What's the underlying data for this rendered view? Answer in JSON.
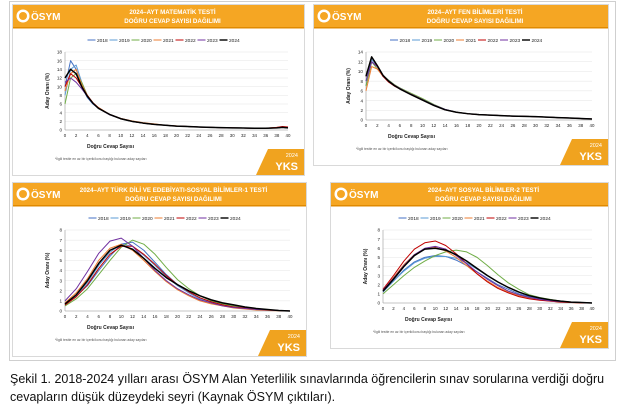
{
  "logo_text": "ÖSYM",
  "corner_badge": {
    "year": "2024",
    "label": "YKS"
  },
  "footnote": "*İlgili testte en az bir içerik/konu başlığı bulunan aday sayıları",
  "caption": "Şekil 1. 2018-2024 yılları arası ÖSYM Alan Yeterlilik sınavlarında öğrencilerin sınav sorularına verdiği doğru cevapların düşük düzeydeki seyri (Kaynak ÖSYM çıktıları).",
  "colors": {
    "banner": "#f5a623",
    "banner_dark": "#f0a31f",
    "series": {
      "2018": "#4472c4",
      "2019": "#5b9bd5",
      "2020": "#70ad47",
      "2021": "#ed7d31",
      "2022": "#c00000",
      "2023": "#7030a0",
      "2024": "#000000"
    }
  },
  "chart_data": [
    {
      "type": "line",
      "title": "2024–AYT MATEMATİK TESTİ",
      "subtitle": "DOĞRU CEVAP SAYISI DAĞILIMI",
      "xlabel": "Doğru Cevap Sayısı",
      "ylabel": "Aday Oranı (%)",
      "xlim": [
        0,
        40
      ],
      "ylim": [
        0,
        18
      ],
      "xticks": [
        0,
        2,
        4,
        6,
        8,
        10,
        12,
        14,
        16,
        18,
        20,
        22,
        24,
        26,
        28,
        30,
        32,
        34,
        36,
        38,
        40
      ],
      "yticks": [
        0,
        2,
        4,
        6,
        8,
        10,
        12,
        14,
        16,
        18
      ],
      "legend": "top",
      "x": [
        0,
        1,
        2,
        3,
        4,
        5,
        6,
        8,
        10,
        12,
        14,
        16,
        18,
        20,
        22,
        24,
        26,
        28,
        30,
        32,
        34,
        36,
        38,
        39,
        40
      ],
      "series": [
        {
          "name": "2018",
          "values": [
            10,
            16,
            14,
            10,
            7.5,
            6,
            5,
            3.6,
            2.7,
            2.0,
            1.6,
            1.3,
            1.1,
            0.9,
            0.8,
            0.7,
            0.6,
            0.55,
            0.5,
            0.45,
            0.4,
            0.4,
            0.5,
            0.6,
            0.5
          ]
        },
        {
          "name": "2019",
          "values": [
            8,
            14,
            15,
            11,
            8,
            6.2,
            5,
            3.6,
            2.6,
            2.0,
            1.6,
            1.3,
            1.1,
            0.9,
            0.8,
            0.7,
            0.6,
            0.55,
            0.5,
            0.45,
            0.4,
            0.4,
            0.5,
            0.6,
            0.5
          ]
        },
        {
          "name": "2020",
          "values": [
            6,
            12,
            13,
            11,
            8,
            6.2,
            5,
            3.5,
            2.6,
            2.0,
            1.6,
            1.3,
            1.1,
            0.9,
            0.8,
            0.7,
            0.6,
            0.55,
            0.5,
            0.45,
            0.4,
            0.4,
            0.5,
            0.6,
            0.5
          ]
        },
        {
          "name": "2021",
          "values": [
            9,
            13,
            14,
            10.5,
            8,
            6.3,
            5.2,
            3.6,
            2.7,
            2.1,
            1.7,
            1.4,
            1.1,
            0.95,
            0.8,
            0.7,
            0.6,
            0.55,
            0.5,
            0.45,
            0.4,
            0.4,
            0.6,
            0.7,
            0.6
          ]
        },
        {
          "name": "2022",
          "values": [
            10,
            13,
            12,
            10,
            8,
            6.3,
            5.1,
            3.6,
            2.6,
            2.0,
            1.6,
            1.3,
            1.1,
            0.9,
            0.8,
            0.7,
            0.6,
            0.55,
            0.5,
            0.45,
            0.4,
            0.4,
            0.6,
            0.8,
            0.7
          ]
        },
        {
          "name": "2023",
          "values": [
            11,
            12,
            11,
            9.5,
            7.8,
            6.2,
            5,
            3.5,
            2.6,
            2.0,
            1.6,
            1.3,
            1.1,
            0.9,
            0.8,
            0.7,
            0.6,
            0.55,
            0.5,
            0.45,
            0.4,
            0.4,
            0.5,
            0.6,
            0.5
          ]
        },
        {
          "name": "2024",
          "values": [
            12,
            14,
            13,
            10,
            7.8,
            6.2,
            5,
            3.6,
            2.6,
            2.0,
            1.6,
            1.3,
            1.1,
            0.9,
            0.8,
            0.7,
            0.6,
            0.55,
            0.5,
            0.45,
            0.4,
            0.4,
            0.5,
            0.6,
            0.5
          ]
        }
      ]
    },
    {
      "type": "line",
      "title": "2024–AYT FEN BİLİMLERİ TESTİ",
      "subtitle": "DOĞRU CEVAP SAYISI DAĞILIMI",
      "xlabel": "Doğru Cevap Sayısı",
      "ylabel": "Aday Oranı (%)",
      "xlim": [
        0,
        40
      ],
      "ylim": [
        0,
        14
      ],
      "xticks": [
        0,
        2,
        4,
        6,
        8,
        10,
        12,
        14,
        16,
        18,
        20,
        22,
        24,
        26,
        28,
        30,
        32,
        34,
        36,
        38,
        40
      ],
      "yticks": [
        0,
        2,
        4,
        6,
        8,
        10,
        12,
        14
      ],
      "legend": "top",
      "x": [
        0,
        1,
        2,
        3,
        4,
        5,
        6,
        8,
        10,
        12,
        14,
        16,
        18,
        20,
        22,
        24,
        26,
        28,
        30,
        32,
        34,
        36,
        38,
        40
      ],
      "series": [
        {
          "name": "2018",
          "values": [
            7,
            12,
            11,
            9,
            8,
            7.2,
            6.6,
            5.4,
            4.3,
            3.1,
            2.2,
            1.6,
            1.3,
            1.1,
            1.0,
            0.9,
            0.8,
            0.75,
            0.7,
            0.6,
            0.5,
            0.4,
            0.3,
            0.2
          ]
        },
        {
          "name": "2019",
          "values": [
            8,
            12.5,
            11,
            9,
            8,
            7.1,
            6.5,
            5.3,
            4.2,
            3.0,
            2.1,
            1.6,
            1.3,
            1.1,
            1.0,
            0.9,
            0.8,
            0.75,
            0.7,
            0.6,
            0.5,
            0.4,
            0.3,
            0.2
          ]
        },
        {
          "name": "2020",
          "values": [
            7,
            12,
            10.5,
            9.2,
            8.2,
            7.3,
            6.6,
            5.5,
            4.4,
            3.2,
            2.2,
            1.6,
            1.3,
            1.1,
            1.0,
            0.9,
            0.8,
            0.75,
            0.7,
            0.6,
            0.5,
            0.4,
            0.3,
            0.2
          ]
        },
        {
          "name": "2021",
          "values": [
            6,
            11,
            10.5,
            9,
            8,
            7.2,
            6.5,
            5.3,
            4.2,
            3.0,
            2.1,
            1.6,
            1.3,
            1.1,
            1.0,
            0.9,
            0.8,
            0.75,
            0.7,
            0.6,
            0.5,
            0.4,
            0.3,
            0.2
          ]
        },
        {
          "name": "2022",
          "values": [
            9,
            13,
            11,
            9,
            7.8,
            7,
            6.4,
            5.2,
            4.1,
            3.0,
            2.1,
            1.6,
            1.3,
            1.1,
            1.0,
            0.9,
            0.8,
            0.75,
            0.7,
            0.6,
            0.5,
            0.4,
            0.3,
            0.2
          ]
        },
        {
          "name": "2023",
          "values": [
            8,
            12,
            11,
            9.2,
            8.1,
            7.2,
            6.5,
            5.3,
            4.2,
            3.1,
            2.2,
            1.6,
            1.3,
            1.1,
            1.0,
            0.9,
            0.8,
            0.75,
            0.7,
            0.6,
            0.5,
            0.4,
            0.3,
            0.2
          ]
        },
        {
          "name": "2024",
          "values": [
            9,
            13,
            11.2,
            9.2,
            8,
            7.1,
            6.4,
            5.2,
            4.1,
            3.0,
            2.1,
            1.6,
            1.3,
            1.1,
            1.0,
            0.9,
            0.8,
            0.75,
            0.7,
            0.6,
            0.5,
            0.4,
            0.3,
            0.2
          ]
        }
      ]
    },
    {
      "type": "line",
      "title": "2024–AYT TÜRK DİLİ VE EDEBİYATI-SOSYAL BİLİMLER-1 TESTİ",
      "subtitle": "DOĞRU CEVAP SAYISI DAĞILIMI",
      "xlabel": "Doğru Cevap Sayısı",
      "ylabel": "Aday Oranı (%)",
      "xlim": [
        0,
        40
      ],
      "ylim": [
        0,
        8
      ],
      "xticks": [
        0,
        2,
        4,
        6,
        8,
        10,
        12,
        14,
        16,
        18,
        20,
        22,
        24,
        26,
        28,
        30,
        32,
        34,
        36,
        38,
        40
      ],
      "yticks": [
        0,
        1,
        2,
        3,
        4,
        5,
        6,
        7,
        8
      ],
      "legend": "top",
      "x": [
        0,
        2,
        4,
        6,
        8,
        10,
        12,
        14,
        16,
        18,
        20,
        22,
        24,
        26,
        28,
        30,
        32,
        34,
        36,
        38,
        40
      ],
      "series": [
        {
          "name": "2018",
          "values": [
            0.6,
            1.5,
            2.5,
            4.0,
            5.4,
            6.6,
            6.8,
            6.0,
            4.8,
            3.6,
            2.6,
            1.8,
            1.2,
            0.9,
            0.6,
            0.4,
            0.3,
            0.2,
            0.1,
            0.05,
            0
          ]
        },
        {
          "name": "2019",
          "values": [
            0.7,
            1.5,
            2.8,
            4.5,
            5.8,
            6.6,
            6.4,
            5.5,
            4.5,
            3.4,
            2.5,
            1.8,
            1.2,
            0.8,
            0.6,
            0.4,
            0.3,
            0.2,
            0.1,
            0.05,
            0
          ]
        },
        {
          "name": "2020",
          "values": [
            0.5,
            1.2,
            2.2,
            3.6,
            5.0,
            6.3,
            7.0,
            6.6,
            5.6,
            4.3,
            3.1,
            2.2,
            1.5,
            1.0,
            0.7,
            0.5,
            0.3,
            0.2,
            0.1,
            0.05,
            0
          ]
        },
        {
          "name": "2021",
          "values": [
            0.8,
            1.8,
            3.2,
            5.0,
            6.2,
            6.6,
            6.0,
            5.0,
            3.9,
            2.9,
            2.1,
            1.5,
            1.0,
            0.7,
            0.5,
            0.3,
            0.2,
            0.1,
            0.05,
            0.02,
            0
          ]
        },
        {
          "name": "2022",
          "values": [
            0.6,
            1.4,
            2.6,
            4.2,
            5.6,
            6.4,
            6.4,
            5.6,
            4.6,
            3.5,
            2.6,
            1.9,
            1.3,
            0.9,
            0.6,
            0.4,
            0.3,
            0.2,
            0.1,
            0.05,
            0
          ]
        },
        {
          "name": "2023",
          "values": [
            1.0,
            2.2,
            3.9,
            5.7,
            6.9,
            7.2,
            6.4,
            5.2,
            4.0,
            3.0,
            2.2,
            1.6,
            1.1,
            0.8,
            0.5,
            0.35,
            0.25,
            0.15,
            0.1,
            0.05,
            0
          ]
        },
        {
          "name": "2024",
          "values": [
            0.7,
            1.6,
            3.0,
            4.7,
            6.0,
            6.5,
            6.1,
            5.2,
            4.2,
            3.3,
            2.6,
            2.0,
            1.5,
            1.1,
            0.8,
            0.6,
            0.4,
            0.25,
            0.15,
            0.05,
            0
          ]
        }
      ]
    },
    {
      "type": "line",
      "title": "2024–AYT SOSYAL BİLİMLER-2 TESTİ",
      "subtitle": "DOĞRU CEVAP SAYISI DAĞILIMI",
      "xlabel": "Doğru Cevap Sayısı",
      "ylabel": "Aday Oranı (%)",
      "xlim": [
        0,
        40
      ],
      "ylim": [
        0,
        8
      ],
      "xticks": [
        0,
        2,
        4,
        6,
        8,
        10,
        12,
        14,
        16,
        18,
        20,
        22,
        24,
        26,
        28,
        30,
        32,
        34,
        36,
        38,
        40
      ],
      "yticks": [
        0,
        1,
        2,
        3,
        4,
        5,
        6,
        7,
        8
      ],
      "legend": "top",
      "x": [
        0,
        2,
        4,
        6,
        8,
        10,
        12,
        14,
        16,
        18,
        20,
        22,
        24,
        26,
        28,
        30,
        32,
        34,
        36,
        38,
        40
      ],
      "series": [
        {
          "name": "2018",
          "values": [
            1.2,
            2.4,
            3.6,
            4.5,
            5.0,
            5.2,
            5.1,
            4.7,
            4.1,
            3.4,
            2.7,
            2.0,
            1.5,
            1.0,
            0.7,
            0.45,
            0.3,
            0.2,
            0.1,
            0.05,
            0
          ]
        },
        {
          "name": "2019",
          "values": [
            1.3,
            2.4,
            3.5,
            4.4,
            4.9,
            5.1,
            5.1,
            4.9,
            4.4,
            3.7,
            3.0,
            2.3,
            1.7,
            1.2,
            0.8,
            0.5,
            0.35,
            0.2,
            0.1,
            0.05,
            0
          ]
        },
        {
          "name": "2020",
          "values": [
            1.0,
            2.0,
            3.0,
            3.9,
            4.6,
            5.2,
            5.6,
            5.8,
            5.6,
            5.0,
            4.1,
            3.1,
            2.2,
            1.5,
            0.9,
            0.6,
            0.4,
            0.2,
            0.1,
            0.05,
            0
          ]
        },
        {
          "name": "2021",
          "values": [
            1.4,
            2.8,
            4.2,
            5.3,
            5.9,
            6.1,
            5.7,
            5.0,
            4.1,
            3.2,
            2.4,
            1.7,
            1.2,
            0.8,
            0.55,
            0.35,
            0.2,
            0.1,
            0.05,
            0.02,
            0
          ]
        },
        {
          "name": "2022",
          "values": [
            1.5,
            3.0,
            4.6,
            5.9,
            6.6,
            6.8,
            6.3,
            5.4,
            4.3,
            3.2,
            2.3,
            1.6,
            1.1,
            0.7,
            0.45,
            0.3,
            0.2,
            0.1,
            0.05,
            0.02,
            0
          ]
        },
        {
          "name": "2023",
          "values": [
            1.4,
            2.7,
            4.1,
            5.3,
            6.0,
            6.2,
            5.9,
            5.2,
            4.3,
            3.4,
            2.6,
            1.9,
            1.3,
            0.9,
            0.6,
            0.4,
            0.25,
            0.15,
            0.1,
            0.05,
            0
          ]
        },
        {
          "name": "2024",
          "values": [
            1.3,
            2.6,
            4.0,
            5.2,
            5.9,
            6.0,
            5.8,
            5.3,
            4.6,
            3.8,
            3.0,
            2.3,
            1.7,
            1.2,
            0.8,
            0.55,
            0.35,
            0.2,
            0.1,
            0.05,
            0
          ]
        }
      ]
    }
  ]
}
